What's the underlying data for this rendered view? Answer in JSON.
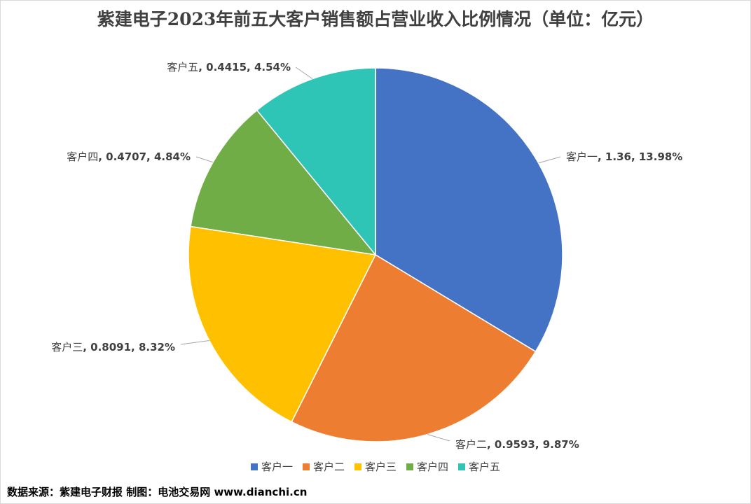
{
  "chart_data": {
    "type": "pie",
    "title": "紫建电子2023年前五大客户销售额占营业收入比例情况（单位：亿元）",
    "slices": [
      {
        "name": "客户一",
        "value": 1.36,
        "label": "客户一, 1.36, 13.98%",
        "color": "#4472C4"
      },
      {
        "name": "客户二",
        "value": 0.9593,
        "label": "客户二, 0.9593, 9.87%",
        "color": "#ED7D31"
      },
      {
        "name": "客户三",
        "value": 0.8091,
        "label": "客户三, 0.8091, 8.32%",
        "color": "#FFC000"
      },
      {
        "name": "客户四",
        "value": 0.4707,
        "label": "客户四, 0.4707, 4.84%",
        "color": "#70AD47"
      },
      {
        "name": "客户五",
        "value": 0.4415,
        "label": "客户五, 0.4415, 4.54%",
        "color": "#2EC4B6"
      }
    ],
    "legend_position": "bottom"
  },
  "source_note": "数据来源：紫建电子财报  制图：电池交易网 www.dianchi.cn"
}
